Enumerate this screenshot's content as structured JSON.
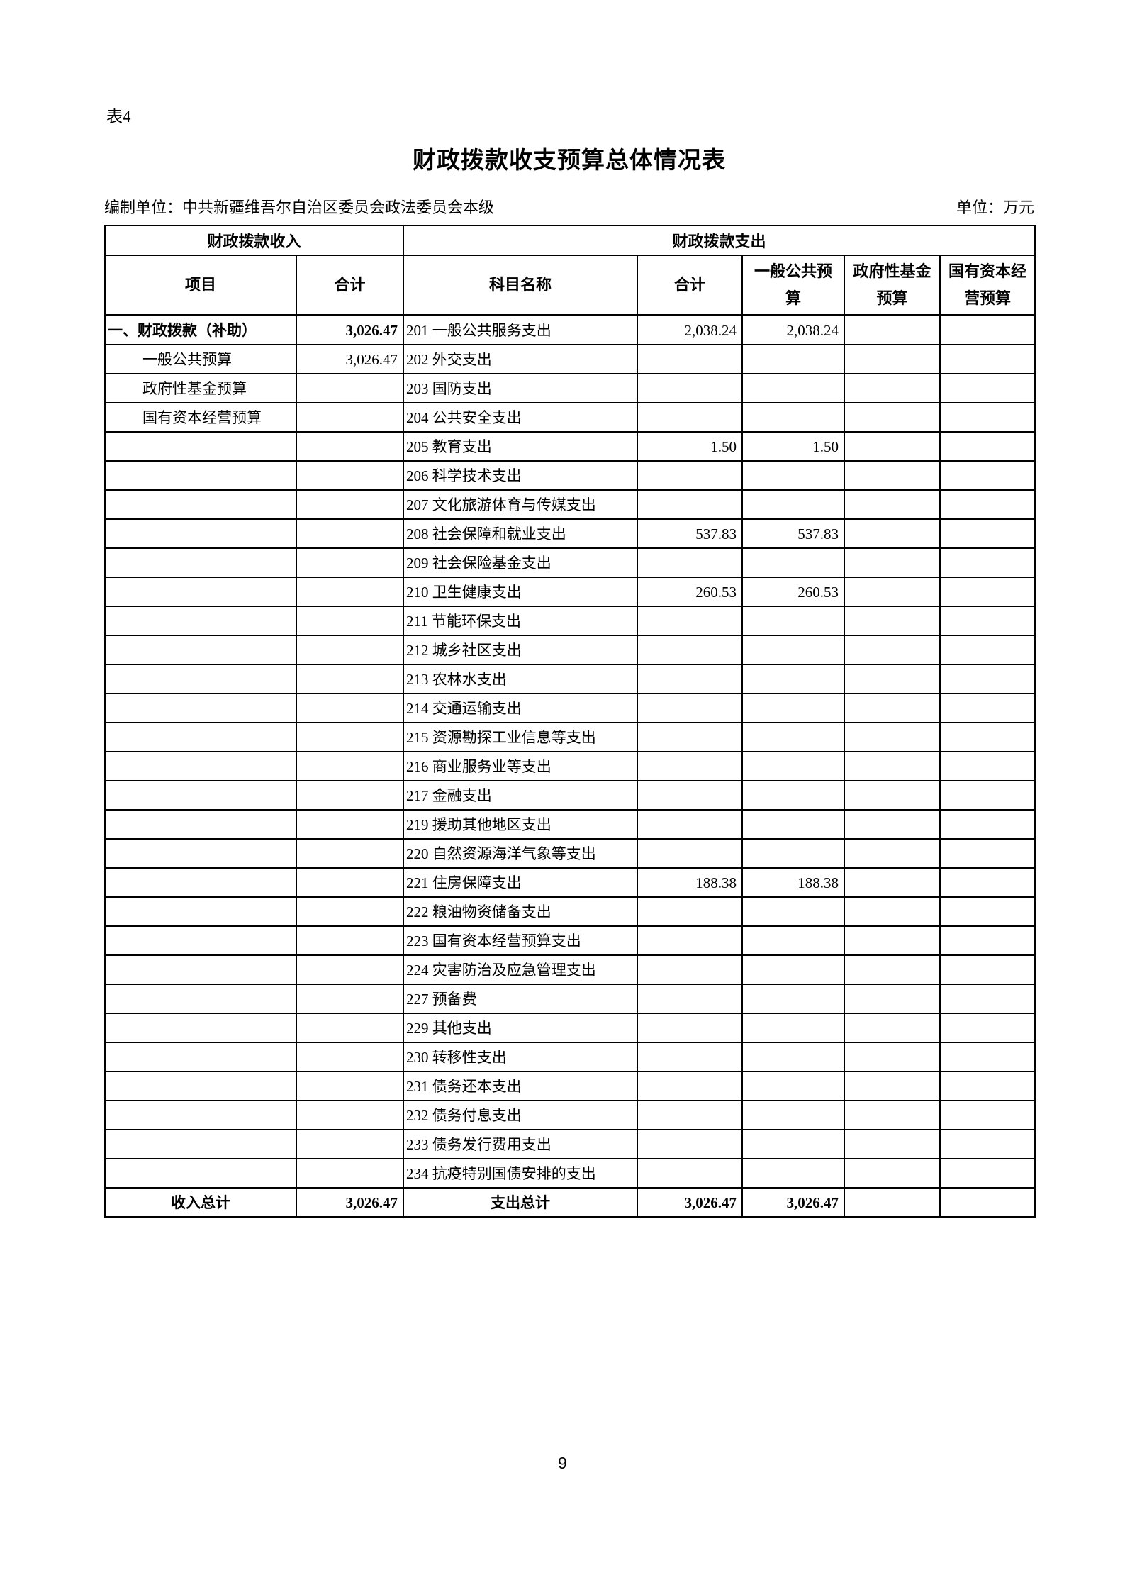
{
  "doc": {
    "table_label": "表4",
    "title": "财政拨款收支预算总体情况表",
    "prepared_by": "编制单位：中共新疆维吾尔自治区委员会政法委员会本级",
    "unit_label": "单位：万元",
    "page_number": "9"
  },
  "colors": {
    "text": "#000000",
    "background": "#ffffff",
    "border": "#000000"
  },
  "table": {
    "group_headers": [
      {
        "label": "财政拨款收入"
      },
      {
        "label": "财政拨款支出"
      }
    ],
    "column_headers": [
      "项目",
      "合计",
      "科目名称",
      "合计",
      "一般公共预算",
      "政府性基金预算",
      "国有资本经营预算"
    ],
    "rows": [
      {
        "v": "first",
        "c": [
          "一、财政拨款（补助）",
          "3,026.47",
          "201 一般公共服务支出",
          "2,038.24",
          "2,038.24",
          "",
          ""
        ]
      },
      {
        "v": "indent",
        "c": [
          "一般公共预算",
          "3,026.47",
          "202 外交支出",
          "",
          "",
          "",
          ""
        ]
      },
      {
        "v": "indent",
        "c": [
          "政府性基金预算",
          "",
          "203 国防支出",
          "",
          "",
          "",
          ""
        ]
      },
      {
        "v": "indent",
        "c": [
          "国有资本经营预算",
          "",
          "204 公共安全支出",
          "",
          "",
          "",
          ""
        ]
      },
      {
        "v": "plain",
        "c": [
          "",
          "",
          "205 教育支出",
          "1.50",
          "1.50",
          "",
          ""
        ]
      },
      {
        "v": "plain",
        "c": [
          "",
          "",
          "206 科学技术支出",
          "",
          "",
          "",
          ""
        ]
      },
      {
        "v": "plain",
        "c": [
          "",
          "",
          "207 文化旅游体育与传媒支出",
          "",
          "",
          "",
          ""
        ]
      },
      {
        "v": "plain",
        "c": [
          "",
          "",
          "208 社会保障和就业支出",
          "537.83",
          "537.83",
          "",
          ""
        ]
      },
      {
        "v": "plain",
        "c": [
          "",
          "",
          "209 社会保险基金支出",
          "",
          "",
          "",
          ""
        ]
      },
      {
        "v": "plain",
        "c": [
          "",
          "",
          "210 卫生健康支出",
          "260.53",
          "260.53",
          "",
          ""
        ]
      },
      {
        "v": "plain",
        "c": [
          "",
          "",
          "211 节能环保支出",
          "",
          "",
          "",
          ""
        ]
      },
      {
        "v": "plain",
        "c": [
          "",
          "",
          "212 城乡社区支出",
          "",
          "",
          "",
          ""
        ]
      },
      {
        "v": "plain",
        "c": [
          "",
          "",
          "213 农林水支出",
          "",
          "",
          "",
          ""
        ]
      },
      {
        "v": "plain",
        "c": [
          "",
          "",
          "214 交通运输支出",
          "",
          "",
          "",
          ""
        ]
      },
      {
        "v": "plain",
        "c": [
          "",
          "",
          "215 资源勘探工业信息等支出",
          "",
          "",
          "",
          ""
        ]
      },
      {
        "v": "plain",
        "c": [
          "",
          "",
          "216 商业服务业等支出",
          "",
          "",
          "",
          ""
        ]
      },
      {
        "v": "plain",
        "c": [
          "",
          "",
          "217 金融支出",
          "",
          "",
          "",
          ""
        ]
      },
      {
        "v": "plain",
        "c": [
          "",
          "",
          "219 援助其他地区支出",
          "",
          "",
          "",
          ""
        ]
      },
      {
        "v": "plain",
        "c": [
          "",
          "",
          "220 自然资源海洋气象等支出",
          "",
          "",
          "",
          ""
        ]
      },
      {
        "v": "plain",
        "c": [
          "",
          "",
          "221 住房保障支出",
          "188.38",
          "188.38",
          "",
          ""
        ]
      },
      {
        "v": "plain",
        "c": [
          "",
          "",
          "222 粮油物资储备支出",
          "",
          "",
          "",
          ""
        ]
      },
      {
        "v": "plain",
        "c": [
          "",
          "",
          "223 国有资本经营预算支出",
          "",
          "",
          "",
          ""
        ]
      },
      {
        "v": "plain",
        "c": [
          "",
          "",
          "224 灾害防治及应急管理支出",
          "",
          "",
          "",
          ""
        ]
      },
      {
        "v": "plain",
        "c": [
          "",
          "",
          "227 预备费",
          "",
          "",
          "",
          ""
        ]
      },
      {
        "v": "plain",
        "c": [
          "",
          "",
          "229 其他支出",
          "",
          "",
          "",
          ""
        ]
      },
      {
        "v": "plain",
        "c": [
          "",
          "",
          "230 转移性支出",
          "",
          "",
          "",
          ""
        ]
      },
      {
        "v": "plain",
        "c": [
          "",
          "",
          "231 债务还本支出",
          "",
          "",
          "",
          ""
        ]
      },
      {
        "v": "plain",
        "c": [
          "",
          "",
          "232 债务付息支出",
          "",
          "",
          "",
          ""
        ]
      },
      {
        "v": "plain",
        "c": [
          "",
          "",
          "233 债务发行费用支出",
          "",
          "",
          "",
          ""
        ]
      },
      {
        "v": "plain",
        "c": [
          "",
          "",
          "234 抗疫特别国债安排的支出",
          "",
          "",
          "",
          ""
        ]
      },
      {
        "v": "total",
        "c": [
          "收入总计",
          "3,026.47",
          "支出总计",
          "3,026.47",
          "3,026.47",
          "",
          ""
        ]
      }
    ]
  }
}
